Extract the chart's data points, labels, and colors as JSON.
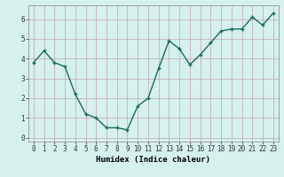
{
  "x": [
    0,
    1,
    2,
    3,
    4,
    5,
    6,
    7,
    8,
    9,
    10,
    11,
    12,
    13,
    14,
    15,
    16,
    17,
    18,
    19,
    20,
    21,
    22,
    23
  ],
  "y": [
    3.8,
    4.4,
    3.8,
    3.6,
    2.2,
    1.2,
    1.0,
    0.5,
    0.5,
    0.4,
    1.6,
    2.0,
    3.5,
    4.9,
    4.5,
    3.7,
    4.2,
    4.8,
    5.4,
    5.5,
    5.5,
    6.1,
    5.7,
    6.3
  ],
  "xlabel": "Humidex (Indice chaleur)",
  "ylabel": "",
  "ylim": [
    -0.2,
    6.7
  ],
  "xlim": [
    -0.5,
    23.5
  ],
  "bg_color": "#d6f0ed",
  "grid_color": "#c4a8a8",
  "line_color": "#1d6b5f",
  "marker_color": "#1d6b5f",
  "line_width": 1.0,
  "marker_size": 2.5,
  "yticks": [
    0,
    1,
    2,
    3,
    4,
    5,
    6
  ],
  "xticks": [
    0,
    1,
    2,
    3,
    4,
    5,
    6,
    7,
    8,
    9,
    10,
    11,
    12,
    13,
    14,
    15,
    16,
    17,
    18,
    19,
    20,
    21,
    22,
    23
  ],
  "tick_fontsize": 5.5,
  "xlabel_fontsize": 6.5,
  "spine_color": "#888888"
}
